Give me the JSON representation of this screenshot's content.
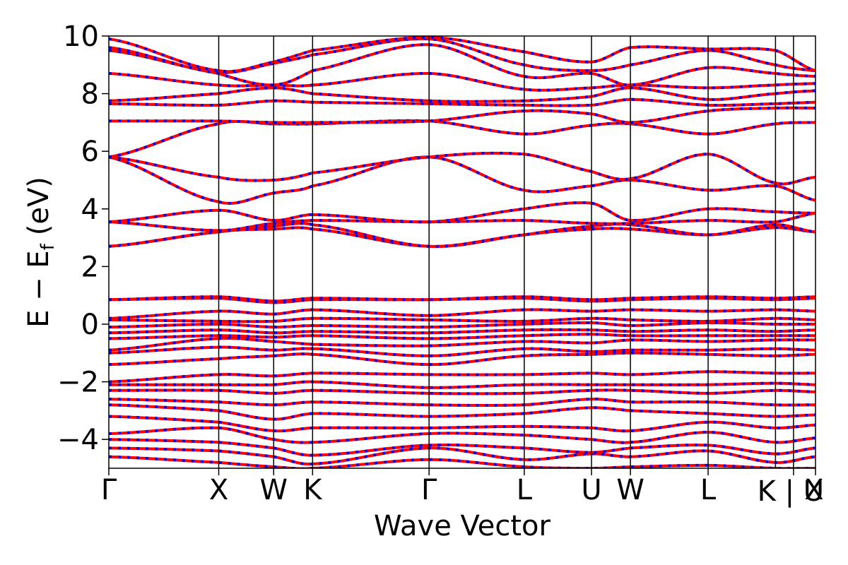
{
  "chart_data": {
    "type": "line",
    "xlabel": "Wave Vector",
    "ylabel": "E − E",
    "ylabel_subscript": "f",
    "ylabel_unit": "(eV)",
    "ylim": [
      -5,
      10
    ],
    "yticks": [
      -4,
      -2,
      0,
      2,
      4,
      6,
      8,
      10
    ],
    "ytick_labels": [
      "−4",
      "−2",
      "0",
      "2",
      "4",
      "6",
      "8",
      "10"
    ],
    "xlim": [
      0,
      6.43
    ],
    "kpoints": [
      {
        "label": "Γ",
        "x": 0.0
      },
      {
        "label": "X",
        "x": 1.0
      },
      {
        "label": "W",
        "x": 1.5
      },
      {
        "label": "K",
        "x": 1.854
      },
      {
        "label": "Γ",
        "x": 2.914
      },
      {
        "label": "L",
        "x": 3.78
      },
      {
        "label": "U",
        "x": 4.392
      },
      {
        "label": "W",
        "x": 4.746
      },
      {
        "label": "L",
        "x": 5.453
      },
      {
        "label": "K",
        "x": 6.066
      },
      {
        "label": "U",
        "x": 6.43
      },
      {
        "label": "X",
        "x": 6.43
      }
    ],
    "segment_break_label": "K | U",
    "grid": false,
    "legend": "none",
    "series_colors": [
      "#ff0000",
      "#0000ff"
    ],
    "bands": [
      {
        "values": [
          -4.6,
          -4.8,
          -4.95,
          -5.0,
          -4.7,
          -4.95,
          -5.0,
          -4.95,
          -4.9,
          -5.0,
          -5.0
        ]
      },
      {
        "values": [
          -4.3,
          -4.4,
          -4.6,
          -4.85,
          -4.3,
          -4.7,
          -4.5,
          -4.6,
          -4.4,
          -4.8,
          -4.6
        ]
      },
      {
        "values": [
          -4.0,
          -4.1,
          -4.3,
          -4.55,
          -4.2,
          -4.3,
          -4.45,
          -4.3,
          -4.2,
          -4.5,
          -4.3
        ]
      },
      {
        "values": [
          -3.8,
          -3.6,
          -4.0,
          -4.1,
          -3.8,
          -3.85,
          -4.0,
          -4.1,
          -3.75,
          -4.1,
          -3.95
        ]
      },
      {
        "values": [
          -3.2,
          -3.4,
          -3.7,
          -3.6,
          -3.6,
          -3.55,
          -3.6,
          -3.7,
          -3.4,
          -3.6,
          -3.5
        ]
      },
      {
        "values": [
          -2.8,
          -3.0,
          -3.3,
          -3.1,
          -3.2,
          -3.1,
          -2.9,
          -3.0,
          -3.1,
          -3.2,
          -3.15
        ]
      },
      {
        "values": [
          -2.6,
          -2.7,
          -2.8,
          -2.7,
          -2.8,
          -2.8,
          -2.6,
          -2.7,
          -2.7,
          -2.8,
          -2.8
        ]
      },
      {
        "values": [
          -2.3,
          -2.3,
          -2.4,
          -2.3,
          -2.4,
          -2.4,
          -2.3,
          -2.3,
          -2.4,
          -2.3,
          -2.35
        ]
      },
      {
        "values": [
          -2.1,
          -2.1,
          -2.1,
          -2.0,
          -2.2,
          -2.1,
          -2.1,
          -2.1,
          -2.1,
          -2.05,
          -2.1
        ]
      },
      {
        "values": [
          -2.0,
          -1.75,
          -1.8,
          -1.7,
          -1.75,
          -1.75,
          -1.7,
          -1.75,
          -1.65,
          -1.7,
          -1.7
        ]
      },
      {
        "values": [
          -1.4,
          -1.2,
          -1.1,
          -1.05,
          -1.4,
          -1.1,
          -1.05,
          -1.0,
          -1.05,
          -1.1,
          -1.05
        ]
      },
      {
        "values": [
          -1.0,
          -0.8,
          -0.9,
          -0.85,
          -1.1,
          -0.85,
          -0.95,
          -0.9,
          -0.9,
          -0.85,
          -0.9
        ]
      },
      {
        "values": [
          -0.9,
          -0.5,
          -0.6,
          -0.7,
          -0.75,
          -0.6,
          -0.65,
          -0.55,
          -0.6,
          -0.55,
          -0.55
        ]
      },
      {
        "values": [
          -0.5,
          -0.4,
          -0.45,
          -0.4,
          -0.5,
          -0.4,
          -0.35,
          -0.4,
          -0.4,
          -0.4,
          -0.4
        ]
      },
      {
        "values": [
          -0.3,
          -0.2,
          -0.3,
          -0.25,
          -0.3,
          -0.2,
          -0.2,
          -0.25,
          -0.2,
          -0.25,
          -0.2
        ]
      },
      {
        "values": [
          -0.1,
          0.0,
          -0.1,
          -0.05,
          -0.1,
          0.0,
          0.05,
          -0.05,
          0.05,
          0.0,
          0.0
        ]
      },
      {
        "values": [
          0.15,
          0.1,
          0.1,
          0.2,
          0.15,
          0.1,
          0.2,
          0.15,
          0.1,
          0.2,
          0.15
        ]
      },
      {
        "values": [
          0.2,
          0.45,
          0.35,
          0.5,
          0.3,
          0.5,
          0.45,
          0.5,
          0.45,
          0.5,
          0.45
        ]
      },
      {
        "values": [
          0.85,
          0.9,
          0.75,
          0.85,
          0.85,
          0.9,
          0.8,
          0.85,
          0.9,
          0.85,
          0.9
        ]
      },
      {
        "values": [
          0.85,
          0.95,
          0.8,
          0.9,
          0.85,
          0.95,
          0.85,
          0.9,
          0.95,
          0.9,
          0.95
        ]
      },
      {
        "values": [
          2.7,
          3.2,
          3.3,
          3.3,
          2.7,
          3.1,
          3.3,
          3.3,
          3.1,
          3.35,
          3.2
        ]
      },
      {
        "values": [
          2.7,
          3.2,
          3.4,
          3.45,
          2.7,
          3.1,
          3.4,
          3.45,
          3.1,
          3.45,
          3.2
        ]
      },
      {
        "values": [
          3.55,
          3.25,
          3.5,
          3.6,
          3.55,
          3.6,
          3.5,
          3.5,
          3.6,
          3.55,
          3.85
        ]
      },
      {
        "values": [
          3.55,
          3.95,
          3.6,
          3.8,
          3.55,
          4.0,
          4.2,
          3.6,
          4.0,
          3.9,
          3.85
        ]
      },
      {
        "values": [
          5.8,
          4.25,
          4.55,
          4.8,
          5.8,
          4.65,
          4.8,
          5.0,
          4.65,
          4.8,
          4.3
        ]
      },
      {
        "values": [
          5.8,
          5.1,
          5.0,
          5.25,
          5.8,
          5.9,
          5.3,
          5.05,
          5.9,
          4.9,
          5.1
        ]
      },
      {
        "values": [
          5.8,
          6.95,
          6.95,
          6.95,
          7.05,
          6.6,
          6.9,
          6.95,
          6.6,
          6.95,
          7.0
        ]
      },
      {
        "values": [
          7.05,
          7.05,
          7.0,
          7.0,
          7.05,
          7.4,
          7.3,
          7.0,
          7.4,
          7.5,
          7.5
        ]
      },
      {
        "values": [
          7.65,
          7.6,
          7.75,
          7.7,
          7.65,
          7.6,
          7.6,
          7.8,
          7.6,
          7.65,
          7.7
        ]
      },
      {
        "values": [
          7.75,
          8.0,
          8.2,
          8.0,
          7.75,
          7.75,
          7.9,
          8.2,
          7.8,
          8.0,
          8.1
        ]
      },
      {
        "values": [
          8.7,
          8.3,
          8.3,
          8.3,
          8.7,
          8.15,
          8.2,
          8.3,
          8.2,
          8.3,
          8.35
        ]
      },
      {
        "values": [
          9.5,
          8.7,
          8.3,
          8.8,
          9.7,
          8.6,
          8.7,
          8.3,
          8.9,
          8.7,
          8.6
        ]
      },
      {
        "values": [
          9.6,
          8.75,
          9.05,
          9.35,
          9.9,
          9.0,
          8.8,
          9.0,
          9.5,
          9.0,
          8.8
        ]
      },
      {
        "values": [
          9.9,
          8.8,
          9.1,
          9.5,
          9.95,
          9.45,
          9.1,
          9.6,
          9.55,
          9.5,
          8.8
        ]
      }
    ]
  }
}
